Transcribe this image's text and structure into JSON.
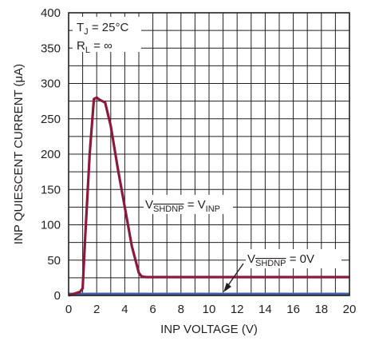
{
  "chart_data": {
    "type": "line",
    "xlabel": "INP VOLTAGE (V)",
    "ylabel": "INP QUIESCENT CURRENT (μA)",
    "xlim": [
      0,
      20
    ],
    "ylim": [
      0,
      400
    ],
    "x_ticks": [
      "0",
      "2",
      "4",
      "6",
      "8",
      "10",
      "12",
      "14",
      "16",
      "18",
      "20"
    ],
    "y_ticks": [
      "0",
      "50",
      "100",
      "150",
      "200",
      "250",
      "300",
      "350",
      "400"
    ],
    "grid": true,
    "colors": {
      "curve": "#8b1a3a",
      "baseline": "#3d5fa6",
      "grid": "#231f20",
      "text": "#231f20"
    },
    "conditions": {
      "tj": {
        "main": "T",
        "sub": "J",
        "rest": " = 25°C"
      },
      "rl": {
        "main": "R",
        "sub": "L",
        "rest": " = ∞"
      }
    },
    "series": [
      {
        "label": {
          "pre": "V",
          "sub": "SHDNP",
          "mid": " = V",
          "sub2": "INP",
          "post": ""
        },
        "x": [
          0,
          0.8,
          1.0,
          1.2,
          1.5,
          1.8,
          2.0,
          2.2,
          2.6,
          3.0,
          3.5,
          4.0,
          4.5,
          5.0,
          5.2,
          5.5,
          6,
          8,
          10,
          12,
          14,
          16,
          18,
          20
        ],
        "y": [
          0,
          5,
          10,
          90,
          200,
          278,
          280,
          277,
          273,
          240,
          180,
          125,
          70,
          32,
          27,
          26,
          26,
          26,
          26,
          26,
          26,
          26,
          26,
          26
        ]
      },
      {
        "label": {
          "pre": "V",
          "sub": "SHDNP",
          "mid": " = 0V",
          "sub2": "",
          "post": ""
        },
        "x": [
          0,
          20
        ],
        "y": [
          0,
          0
        ]
      }
    ]
  }
}
